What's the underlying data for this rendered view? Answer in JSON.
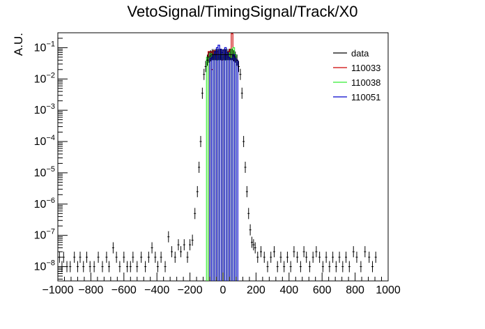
{
  "chart_data": {
    "type": "histogram",
    "title": "VetoSignal/TimingSignal/Track/X0",
    "xlabel": "",
    "ylabel": "A.U.",
    "xlim": [
      -1000,
      1000
    ],
    "ylim": [
      3.5e-09,
      0.3
    ],
    "yscale": "log",
    "grid": false,
    "legend_position": "top-right",
    "x_tick_labels": [
      "−1000",
      "−800",
      "−600",
      "−400",
      "−200",
      "0",
      "200",
      "400",
      "600",
      "800",
      "1000"
    ],
    "x_ticks": [
      -1000,
      -800,
      -600,
      -400,
      -200,
      0,
      200,
      400,
      600,
      800,
      1000
    ],
    "y_ticks": [
      {
        "value": 1e-08,
        "base": "10",
        "exp": "−8"
      },
      {
        "value": 1e-07,
        "base": "10",
        "exp": "−7"
      },
      {
        "value": 1e-06,
        "base": "10",
        "exp": "−6"
      },
      {
        "value": 1e-05,
        "base": "10",
        "exp": "−5"
      },
      {
        "value": 0.0001,
        "base": "10",
        "exp": "−4"
      },
      {
        "value": 0.001,
        "base": "10",
        "exp": "−3"
      },
      {
        "value": 0.01,
        "base": "10",
        "exp": "−2"
      },
      {
        "value": 0.1,
        "base": "10",
        "exp": "−1"
      }
    ],
    "legend": [
      {
        "label": "data",
        "color": "#000000"
      },
      {
        "label": "110033",
        "color": "#cc0000"
      },
      {
        "label": "110038",
        "color": "#33ee33"
      },
      {
        "label": "110051",
        "color": "#0000cc"
      }
    ],
    "series": [
      {
        "name": "data",
        "kind": "points",
        "color": "#000000",
        "points": [
          [
            -990,
            2e-08
          ],
          [
            -975,
            1e-08
          ],
          [
            -965,
            2e-08
          ],
          [
            -945,
            1e-08
          ],
          [
            -925,
            1e-08
          ],
          [
            -900,
            2e-08
          ],
          [
            -880,
            1e-08
          ],
          [
            -865,
            2e-08
          ],
          [
            -845,
            1e-08
          ],
          [
            -825,
            2e-08
          ],
          [
            -805,
            1e-08
          ],
          [
            -780,
            1e-08
          ],
          [
            -755,
            2e-08
          ],
          [
            -730,
            1e-08
          ],
          [
            -705,
            2e-08
          ],
          [
            -690,
            1e-08
          ],
          [
            -665,
            4e-08
          ],
          [
            -645,
            2e-08
          ],
          [
            -625,
            1e-08
          ],
          [
            -600,
            2e-08
          ],
          [
            -580,
            1e-08
          ],
          [
            -560,
            1e-08
          ],
          [
            -545,
            2e-08
          ],
          [
            -520,
            1e-08
          ],
          [
            -495,
            2e-08
          ],
          [
            -470,
            1e-08
          ],
          [
            -450,
            2e-08
          ],
          [
            -430,
            4e-08
          ],
          [
            -410,
            2e-08
          ],
          [
            -395,
            1e-08
          ],
          [
            -375,
            2e-08
          ],
          [
            -350,
            1e-08
          ],
          [
            -330,
            9e-08
          ],
          [
            -310,
            3e-08
          ],
          [
            -290,
            2e-08
          ],
          [
            -270,
            5e-08
          ],
          [
            -255,
            3e-08
          ],
          [
            -235,
            5e-08
          ],
          [
            -215,
            2e-08
          ],
          [
            -200,
            5e-08
          ],
          [
            -185,
            7e-08
          ],
          [
            -170,
            5e-07
          ],
          [
            -155,
            2.5e-06
          ],
          [
            -145,
            1.5e-05
          ],
          [
            -135,
            0.0001
          ],
          [
            -125,
            0.0035
          ],
          [
            -115,
            0.014
          ],
          [
            -105,
            0.025
          ],
          [
            -95,
            0.04
          ],
          [
            -85,
            0.05
          ],
          [
            -75,
            0.055
          ],
          [
            -65,
            0.06
          ],
          [
            -55,
            0.06
          ],
          [
            -45,
            0.06
          ],
          [
            -35,
            0.06
          ],
          [
            -25,
            0.06
          ],
          [
            -15,
            0.06
          ],
          [
            -5,
            0.06
          ],
          [
            5,
            0.06
          ],
          [
            15,
            0.06
          ],
          [
            25,
            0.06
          ],
          [
            35,
            0.06
          ],
          [
            45,
            0.06
          ],
          [
            55,
            0.06
          ],
          [
            65,
            0.055
          ],
          [
            75,
            0.05
          ],
          [
            85,
            0.04
          ],
          [
            95,
            0.025
          ],
          [
            105,
            0.014
          ],
          [
            115,
            0.0035
          ],
          [
            125,
            0.0001
          ],
          [
            135,
            1.5e-05
          ],
          [
            145,
            2.5e-06
          ],
          [
            155,
            5e-07
          ],
          [
            165,
            1.5e-07
          ],
          [
            175,
            6e-08
          ],
          [
            185,
            5e-08
          ],
          [
            195,
            4e-08
          ],
          [
            210,
            2e-08
          ],
          [
            230,
            3e-08
          ],
          [
            250,
            2e-08
          ],
          [
            270,
            1e-08
          ],
          [
            290,
            2e-08
          ],
          [
            310,
            3e-08
          ],
          [
            330,
            1e-08
          ],
          [
            350,
            2e-08
          ],
          [
            370,
            1e-08
          ],
          [
            390,
            2e-08
          ],
          [
            410,
            1e-08
          ],
          [
            430,
            3e-08
          ],
          [
            450,
            2e-08
          ],
          [
            470,
            1e-08
          ],
          [
            490,
            3e-08
          ],
          [
            505,
            2e-08
          ],
          [
            525,
            1e-08
          ],
          [
            545,
            2e-08
          ],
          [
            565,
            3e-08
          ],
          [
            585,
            2e-08
          ],
          [
            605,
            1e-08
          ],
          [
            625,
            2e-08
          ],
          [
            645,
            1e-08
          ],
          [
            665,
            2e-08
          ],
          [
            685,
            1e-08
          ],
          [
            705,
            2e-08
          ],
          [
            725,
            1e-08
          ],
          [
            745,
            2e-08
          ],
          [
            765,
            1e-08
          ],
          [
            790,
            3e-08
          ],
          [
            810,
            2e-08
          ],
          [
            835,
            1e-08
          ],
          [
            860,
            3e-08
          ],
          [
            885,
            2e-08
          ],
          [
            905,
            1e-08
          ],
          [
            925,
            2e-08
          ]
        ]
      },
      {
        "name": "110033",
        "kind": "hist",
        "color": "#cc0000",
        "bins": [
          [
            -90,
            -80,
            0.075
          ],
          [
            -80,
            -70,
            0.075
          ],
          [
            -70,
            -60,
            0.02
          ],
          [
            -60,
            -50,
            0.08
          ],
          [
            -50,
            -40,
            0.06
          ],
          [
            -40,
            -30,
            0.075
          ],
          [
            -30,
            -20,
            0.05
          ],
          [
            -20,
            -10,
            0.05
          ],
          [
            -10,
            0,
            0.04
          ],
          [
            0,
            10,
            0.05
          ],
          [
            10,
            20,
            0.06
          ],
          [
            20,
            30,
            0.06
          ],
          [
            30,
            40,
            0.075
          ],
          [
            40,
            50,
            0.09
          ],
          [
            50,
            60,
            0.28
          ],
          [
            60,
            70,
            0.04
          ]
        ]
      },
      {
        "name": "110038",
        "kind": "hist",
        "color": "#33ee33",
        "bins": [
          [
            -100,
            -90,
            0.05
          ],
          [
            -90,
            -80,
            0.05
          ],
          [
            -80,
            -70,
            0.065
          ],
          [
            -70,
            -60,
            0.06
          ],
          [
            -60,
            -50,
            0.05
          ],
          [
            -50,
            -40,
            0.055
          ],
          [
            -40,
            -30,
            0.04
          ],
          [
            -30,
            -20,
            0.05
          ],
          [
            -20,
            -10,
            0.055
          ],
          [
            -10,
            0,
            0.06
          ],
          [
            0,
            10,
            0.05
          ],
          [
            10,
            20,
            0.04
          ],
          [
            20,
            30,
            0.05
          ],
          [
            30,
            40,
            0.065
          ],
          [
            40,
            50,
            0.07
          ],
          [
            50,
            60,
            0.09
          ],
          [
            60,
            70,
            0.1
          ],
          [
            70,
            80,
            0.06
          ]
        ]
      },
      {
        "name": "110051",
        "kind": "hist",
        "color": "#0000cc",
        "bins": [
          [
            -80,
            -70,
            0.045
          ],
          [
            -70,
            -60,
            0.05
          ],
          [
            -60,
            -50,
            0.06
          ],
          [
            -50,
            -40,
            0.075
          ],
          [
            -40,
            -30,
            0.1
          ],
          [
            -30,
            -20,
            0.12
          ],
          [
            -20,
            -10,
            0.09
          ],
          [
            -10,
            0,
            0.07
          ],
          [
            0,
            10,
            0.085
          ],
          [
            10,
            20,
            0.1
          ],
          [
            20,
            30,
            0.07
          ],
          [
            30,
            40,
            0.05
          ],
          [
            40,
            50,
            0.045
          ],
          [
            50,
            60,
            0.045
          ],
          [
            60,
            70,
            0.06
          ],
          [
            70,
            80,
            0.045
          ],
          [
            80,
            90,
            0.04
          ]
        ]
      }
    ]
  }
}
